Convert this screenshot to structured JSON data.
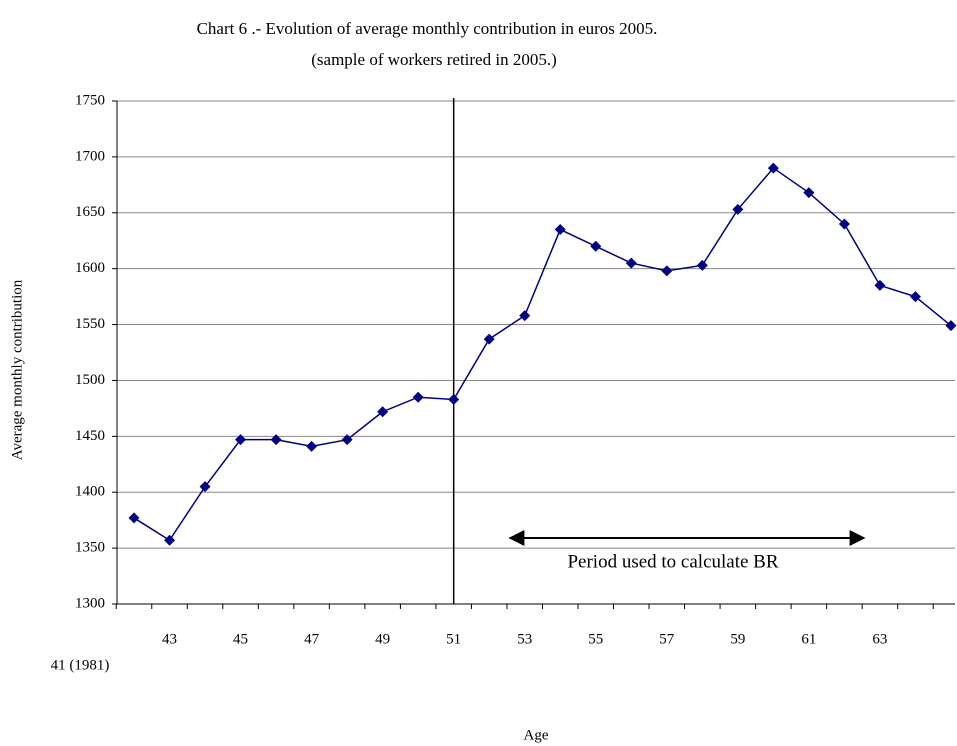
{
  "chart_data": {
    "type": "line",
    "title": "Chart 6 .- Evolution of average monthly contribution in euros 2005.",
    "subtitle": "(sample of workers retired in 2005.)",
    "y_label": "Average monthly contribution",
    "x_label": "Age",
    "x_note": "41 (1981)",
    "annotation": "Period used to calculate BR",
    "categories": [
      null,
      "43",
      null,
      "45",
      null,
      "47",
      null,
      "49",
      null,
      "51",
      null,
      "53",
      null,
      "55",
      null,
      "57",
      null,
      "59",
      null,
      "61",
      null,
      "63",
      null,
      null
    ],
    "series": [
      {
        "name": "Average monthly contribution",
        "color": "#000080",
        "values": [
          1377,
          1357,
          1405,
          1447,
          1447,
          1441,
          1447,
          1472,
          1485,
          1483,
          1537,
          1558,
          1635,
          1620,
          1605,
          1598,
          1603,
          1653,
          1690,
          1668,
          1640,
          1585,
          1575,
          1549
        ]
      }
    ],
    "ylim": [
      1300,
      1750
    ],
    "yticks": [
      1300,
      1350,
      1400,
      1450,
      1500,
      1550,
      1600,
      1650,
      1700,
      1750
    ],
    "grid": true
  }
}
